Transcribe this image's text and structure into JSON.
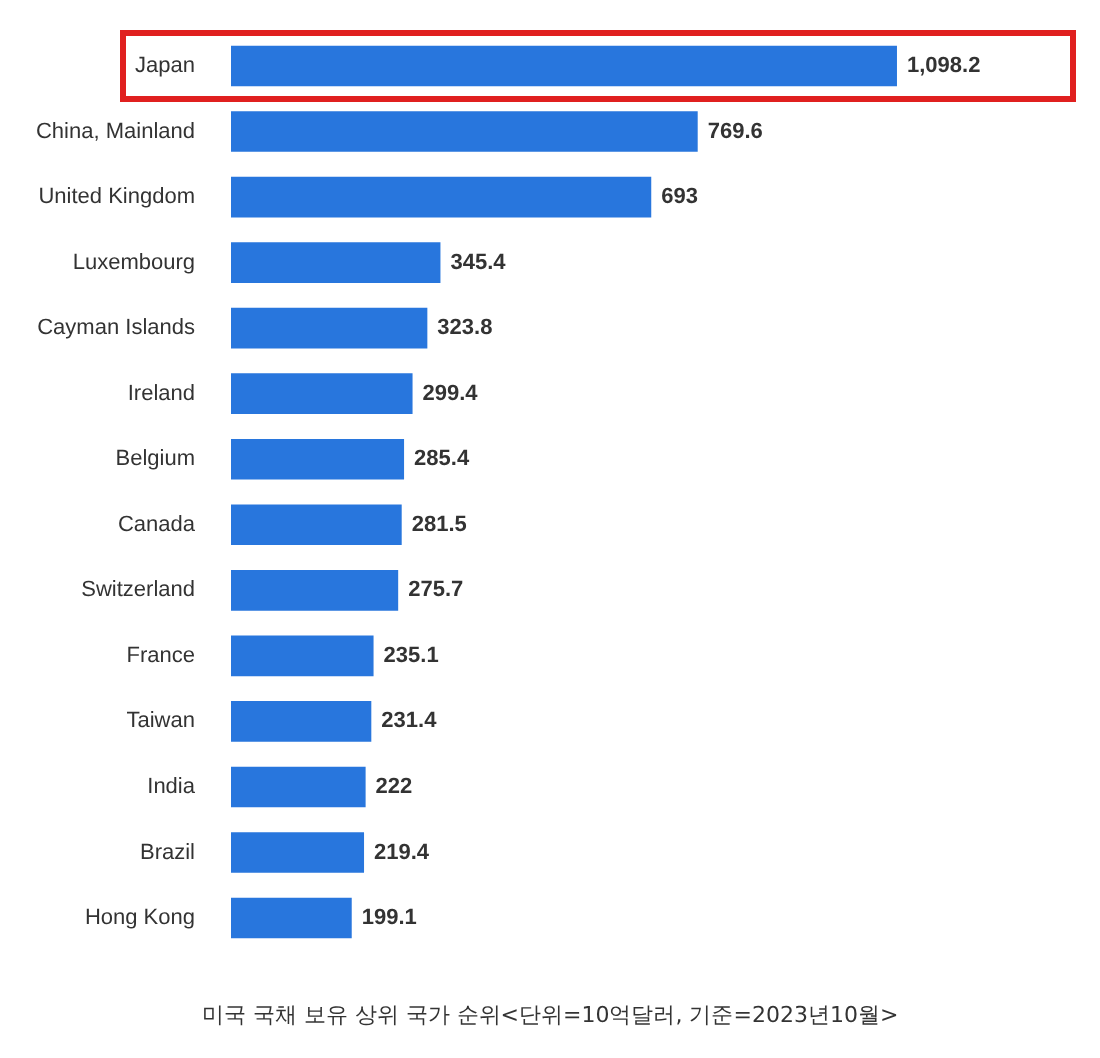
{
  "chart_data": {
    "type": "bar",
    "orientation": "horizontal",
    "categories": [
      "Japan",
      "China, Mainland",
      "United Kingdom",
      "Luxembourg",
      "Cayman Islands",
      "Ireland",
      "Belgium",
      "Canada",
      "Switzerland",
      "France",
      "Taiwan",
      "India",
      "Brazil",
      "Hong Kong"
    ],
    "values": [
      1098.2,
      769.6,
      693,
      345.4,
      323.8,
      299.4,
      285.4,
      281.5,
      275.7,
      235.1,
      231.4,
      222,
      219.4,
      199.1
    ],
    "value_labels": [
      "1,098.2",
      "769.6",
      "693",
      "345.4",
      "323.8",
      "299.4",
      "285.4",
      "281.5",
      "275.7",
      "235.1",
      "231.4",
      "222",
      "219.4",
      "199.1"
    ],
    "color": "#2876dd",
    "grid": false,
    "legend": false,
    "tick_labels": "y",
    "annotations": [
      "미국 국채 보유 상위 국가 순위<단위=10억달러, 기준=2023년10월>"
    ]
  }
}
